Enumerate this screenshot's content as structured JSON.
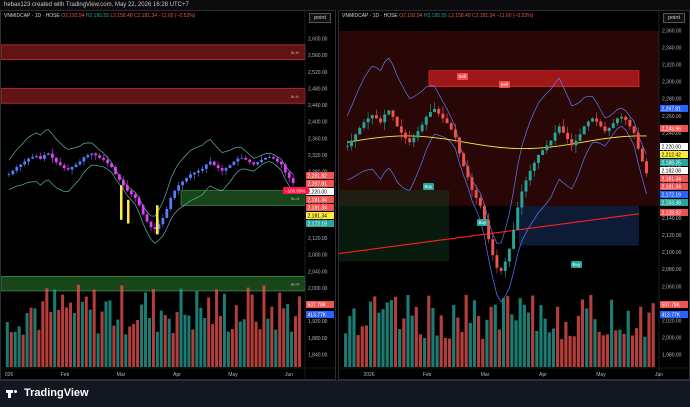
{
  "header": {
    "title": "hebax123 created with TradingView.com, May 22, 2026 16:28 UTC+7"
  },
  "footer": {
    "logo_text": "TradingView"
  },
  "colors": {
    "up": "#26a69a",
    "down": "#ef5350",
    "accent": "#2962ff",
    "bb": "#5b9bd5",
    "yellow": "#ffeb3b"
  },
  "panes": [
    {
      "legend": {
        "symbol": "VNMIDCAP · 1D · HOSE",
        "o": "O2,192.94",
        "h": "H2,195.55",
        "l": "L2,158.48",
        "c": "C2,181.34",
        "chg": "−11.60 (−0.53%)"
      },
      "point_label": "point",
      "y_ticks": [
        "2,600.00",
        "2,560.00",
        "2,520.00",
        "2,480.00",
        "2,440.00",
        "2,400.00",
        "2,360.00",
        "2,320.00",
        "2,280.00",
        "2,240.00",
        "2,200.00",
        "2,160.00",
        "2,120.00",
        "2,080.00",
        "2,040.00",
        "2,000.00",
        "1,960.00",
        "1,920.00",
        "1,880.00",
        "1,840.00"
      ],
      "x_ticks": [
        "026",
        "Feb",
        "Mar",
        "Apr",
        "May",
        "Jun"
      ],
      "zone_labels": [
        "Br-M",
        "Br-M",
        "Bu-M",
        "Bu-M"
      ],
      "price_labels": [
        {
          "text": "2,281.82",
          "color": "#ef5350"
        },
        {
          "text": "2,267.81",
          "color": "#ef5350"
        },
        {
          "text": "2,220.00",
          "color": "#000000"
        },
        {
          "text": "2,181.34",
          "color": "#ef5350"
        },
        {
          "text": "2,181.34",
          "color": "#ef5350"
        },
        {
          "text": "2,181.34",
          "color": "#ffeb3b"
        },
        {
          "text": "2,172.19",
          "color": "#26a69a"
        },
        {
          "text": "507.78K",
          "color": "#ef5350"
        },
        {
          "text": "413.77K",
          "color": "#2962ff"
        }
      ],
      "marker_label": "−100.00%"
    },
    {
      "legend": {
        "symbol": "VNMIDCAP · 1D · HOSE",
        "o": "O2,192.94",
        "h": "H2,195.55",
        "l": "L2,158.48",
        "c": "C2,181.34",
        "chg": "−11.60 (−0.53%)"
      },
      "point_label": "point",
      "y_ticks": [
        "2,360.00",
        "2,340.00",
        "2,320.00",
        "2,300.00",
        "2,280.00",
        "2,260.00",
        "2,240.00",
        "2,220.00",
        "2,200.00",
        "2,180.00",
        "2,160.00",
        "2,140.00",
        "2,120.00",
        "2,100.00",
        "2,080.00",
        "2,060.00",
        "2,040.00",
        "2,020.00",
        "2,000.00",
        "1,980.00"
      ],
      "x_ticks": [
        "2026",
        "Feb",
        "Mar",
        "Apr",
        "May",
        "Jun"
      ],
      "signals": [
        "Sell",
        "Sell",
        "Buy",
        "Buy",
        "Buy"
      ],
      "price_labels": [
        {
          "text": "2,267.81",
          "color": "#2962ff"
        },
        {
          "text": "2,243.96",
          "color": "#ef5350"
        },
        {
          "text": "2,220.00",
          "color": "#000000"
        },
        {
          "text": "2,212.42",
          "color": "#ffeb3b"
        },
        {
          "text": "2,188.25",
          "color": "#26a69a"
        },
        {
          "text": "2,182.08",
          "color": "#ffffff"
        },
        {
          "text": "2,181.34",
          "color": "#ef5350"
        },
        {
          "text": "2,181.34",
          "color": "#ef5350"
        },
        {
          "text": "2,172.19",
          "color": "#2962ff"
        },
        {
          "text": "2,153.38",
          "color": "#26a69a"
        },
        {
          "text": "2,128.92",
          "color": "#ef5350"
        },
        {
          "text": "507.78K",
          "color": "#ef5350"
        },
        {
          "text": "413.77K",
          "color": "#2962ff"
        }
      ]
    }
  ],
  "chart_data": [
    {
      "type": "candlestick",
      "title": "",
      "ylim": [
        1830,
        2620
      ],
      "series": [
        {
          "name": "",
          "values": [
            2205,
            2215,
            2225,
            2232,
            2240,
            2248,
            2252,
            2255,
            2247,
            2258,
            2262,
            2250,
            2238,
            2230,
            2222,
            2218,
            2225,
            2232,
            2240,
            2252,
            2258,
            2262,
            2257,
            2250,
            2245,
            2235,
            2225,
            2205,
            2190,
            2175,
            2160,
            2150,
            2140,
            2120,
            2095,
            2075,
            2060,
            2055,
            2068,
            2085,
            2110,
            2140,
            2160,
            2175,
            2185,
            2195,
            2205,
            2210,
            2215,
            2220,
            2232,
            2240,
            2230,
            2222,
            2215,
            2222,
            2230,
            2240,
            2248,
            2250,
            2245,
            2238,
            2232,
            2238,
            2245,
            2250,
            2252,
            2248,
            2240,
            2232,
            2210,
            2195,
            2181
          ]
        }
      ]
    },
    {
      "type": "candlestick",
      "title": "",
      "ylim": [
        1970,
        2370
      ],
      "series": [
        {
          "name": "",
          "values": [
            2215,
            2222,
            2230,
            2238,
            2245,
            2250,
            2254,
            2250,
            2245,
            2255,
            2260,
            2252,
            2240,
            2232,
            2225,
            2220,
            2226,
            2234,
            2242,
            2252,
            2258,
            2262,
            2256,
            2250,
            2244,
            2236,
            2226,
            2206,
            2190,
            2176,
            2160,
            2150,
            2140,
            2122,
            2098,
            2078,
            2062,
            2058,
            2070,
            2086,
            2110,
            2138,
            2158,
            2172,
            2184,
            2194,
            2204,
            2210,
            2216,
            2222,
            2232,
            2240,
            2232,
            2224,
            2216,
            2222,
            2230,
            2240,
            2246,
            2250,
            2246,
            2240,
            2234,
            2238,
            2244,
            2250,
            2252,
            2248,
            2240,
            2232,
            2212,
            2196,
            2181
          ]
        }
      ]
    }
  ]
}
